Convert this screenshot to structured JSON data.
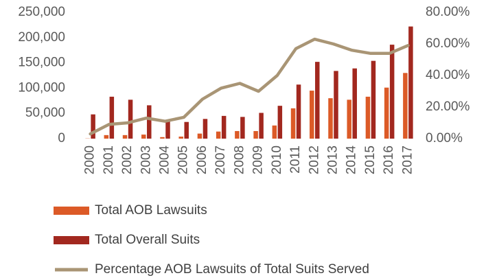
{
  "chart_data": {
    "type": "bar",
    "categories": [
      "2000",
      "2001",
      "2002",
      "2003",
      "2004",
      "2005",
      "2006",
      "2007",
      "2008",
      "2009",
      "2010",
      "2011",
      "2012",
      "2013",
      "2014",
      "2015",
      "2016",
      "2017"
    ],
    "series": [
      {
        "name": "Total AOB Lawsuits",
        "color": "#dc5a27",
        "type": "bar",
        "values": [
          400,
          7000,
          7000,
          8000,
          3000,
          4000,
          10000,
          14000,
          15000,
          15000,
          26000,
          60000,
          95000,
          80000,
          77000,
          83000,
          101000,
          130000
        ]
      },
      {
        "name": "Total Overall Suits",
        "color": "#a2281f",
        "type": "bar",
        "values": [
          48000,
          83000,
          77000,
          66000,
          35000,
          33000,
          39000,
          45000,
          43000,
          51000,
          65000,
          107000,
          152000,
          134000,
          139000,
          154000,
          186000,
          222000
        ]
      },
      {
        "name": "Percentage AOB Lawsuits of Total Suits Served",
        "color": "#a99575",
        "type": "line",
        "axis": "y2",
        "values": [
          3,
          9,
          10,
          13,
          11,
          13.5,
          25,
          32,
          35,
          30,
          40,
          57,
          63,
          60,
          56,
          54,
          54,
          59
        ]
      }
    ],
    "ylim": [
      0,
      250000
    ],
    "yticks": [
      0,
      {
        "value": 50000,
        "label": "50,000"
      },
      {
        "value": 100000,
        "label": "100,000"
      },
      {
        "value": 150000,
        "label": "150,000"
      },
      {
        "value": 200000,
        "label": "200,000"
      },
      {
        "value": 250000,
        "label": "250,000"
      }
    ],
    "y2lim": [
      0,
      80
    ],
    "y2ticks": [
      {
        "value": 0,
        "label": "0.00%"
      },
      {
        "value": 20,
        "label": "20.00%"
      },
      {
        "value": 40,
        "label": "40.00%"
      },
      {
        "value": 60,
        "label": "60.00%"
      },
      {
        "value": 80,
        "label": "80.00%"
      }
    ],
    "grid": false,
    "legend": "bottom"
  }
}
